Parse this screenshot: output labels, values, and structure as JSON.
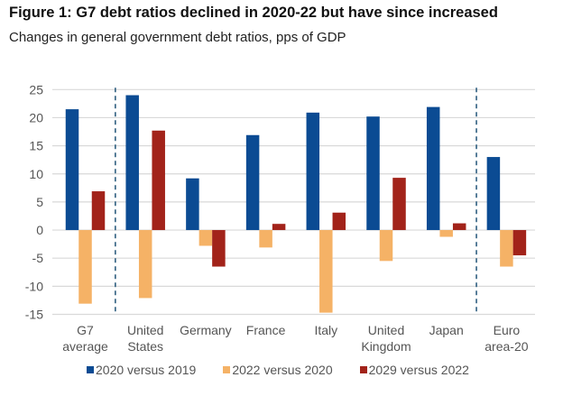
{
  "chart_data": {
    "type": "bar",
    "title": "Figure 1: G7 debt ratios declined in 2020-22 but have since increased",
    "subtitle": "Changes in general government debt ratios, pps of GDP",
    "xlabel": "",
    "ylabel": "",
    "ylim": [
      -15,
      25
    ],
    "yticks": [
      25,
      20,
      15,
      10,
      5,
      0,
      -5,
      -10,
      -15
    ],
    "grid": true,
    "legend_position": "bottom",
    "categories": [
      [
        "G7",
        "average"
      ],
      [
        "United",
        "States"
      ],
      [
        "Germany"
      ],
      [
        "France"
      ],
      [
        "Italy"
      ],
      [
        "United",
        "Kingdom"
      ],
      [
        "Japan"
      ],
      [
        "Euro",
        "area-20"
      ]
    ],
    "separators_after_category_index": [
      0,
      6
    ],
    "series": [
      {
        "name": "2020 versus 2019",
        "color": "#0B4B93",
        "values": [
          21.5,
          24.0,
          9.2,
          16.9,
          20.9,
          20.2,
          21.9,
          13.0
        ]
      },
      {
        "name": "2022 versus 2020",
        "color": "#F5B266",
        "values": [
          -13.1,
          -12.1,
          -2.8,
          -3.1,
          -14.7,
          -5.5,
          -1.2,
          -6.5
        ]
      },
      {
        "name": "2029 versus 2022",
        "color": "#A2231A",
        "values": [
          6.9,
          17.7,
          -6.5,
          1.1,
          3.1,
          9.3,
          1.2,
          -4.5
        ]
      }
    ]
  }
}
